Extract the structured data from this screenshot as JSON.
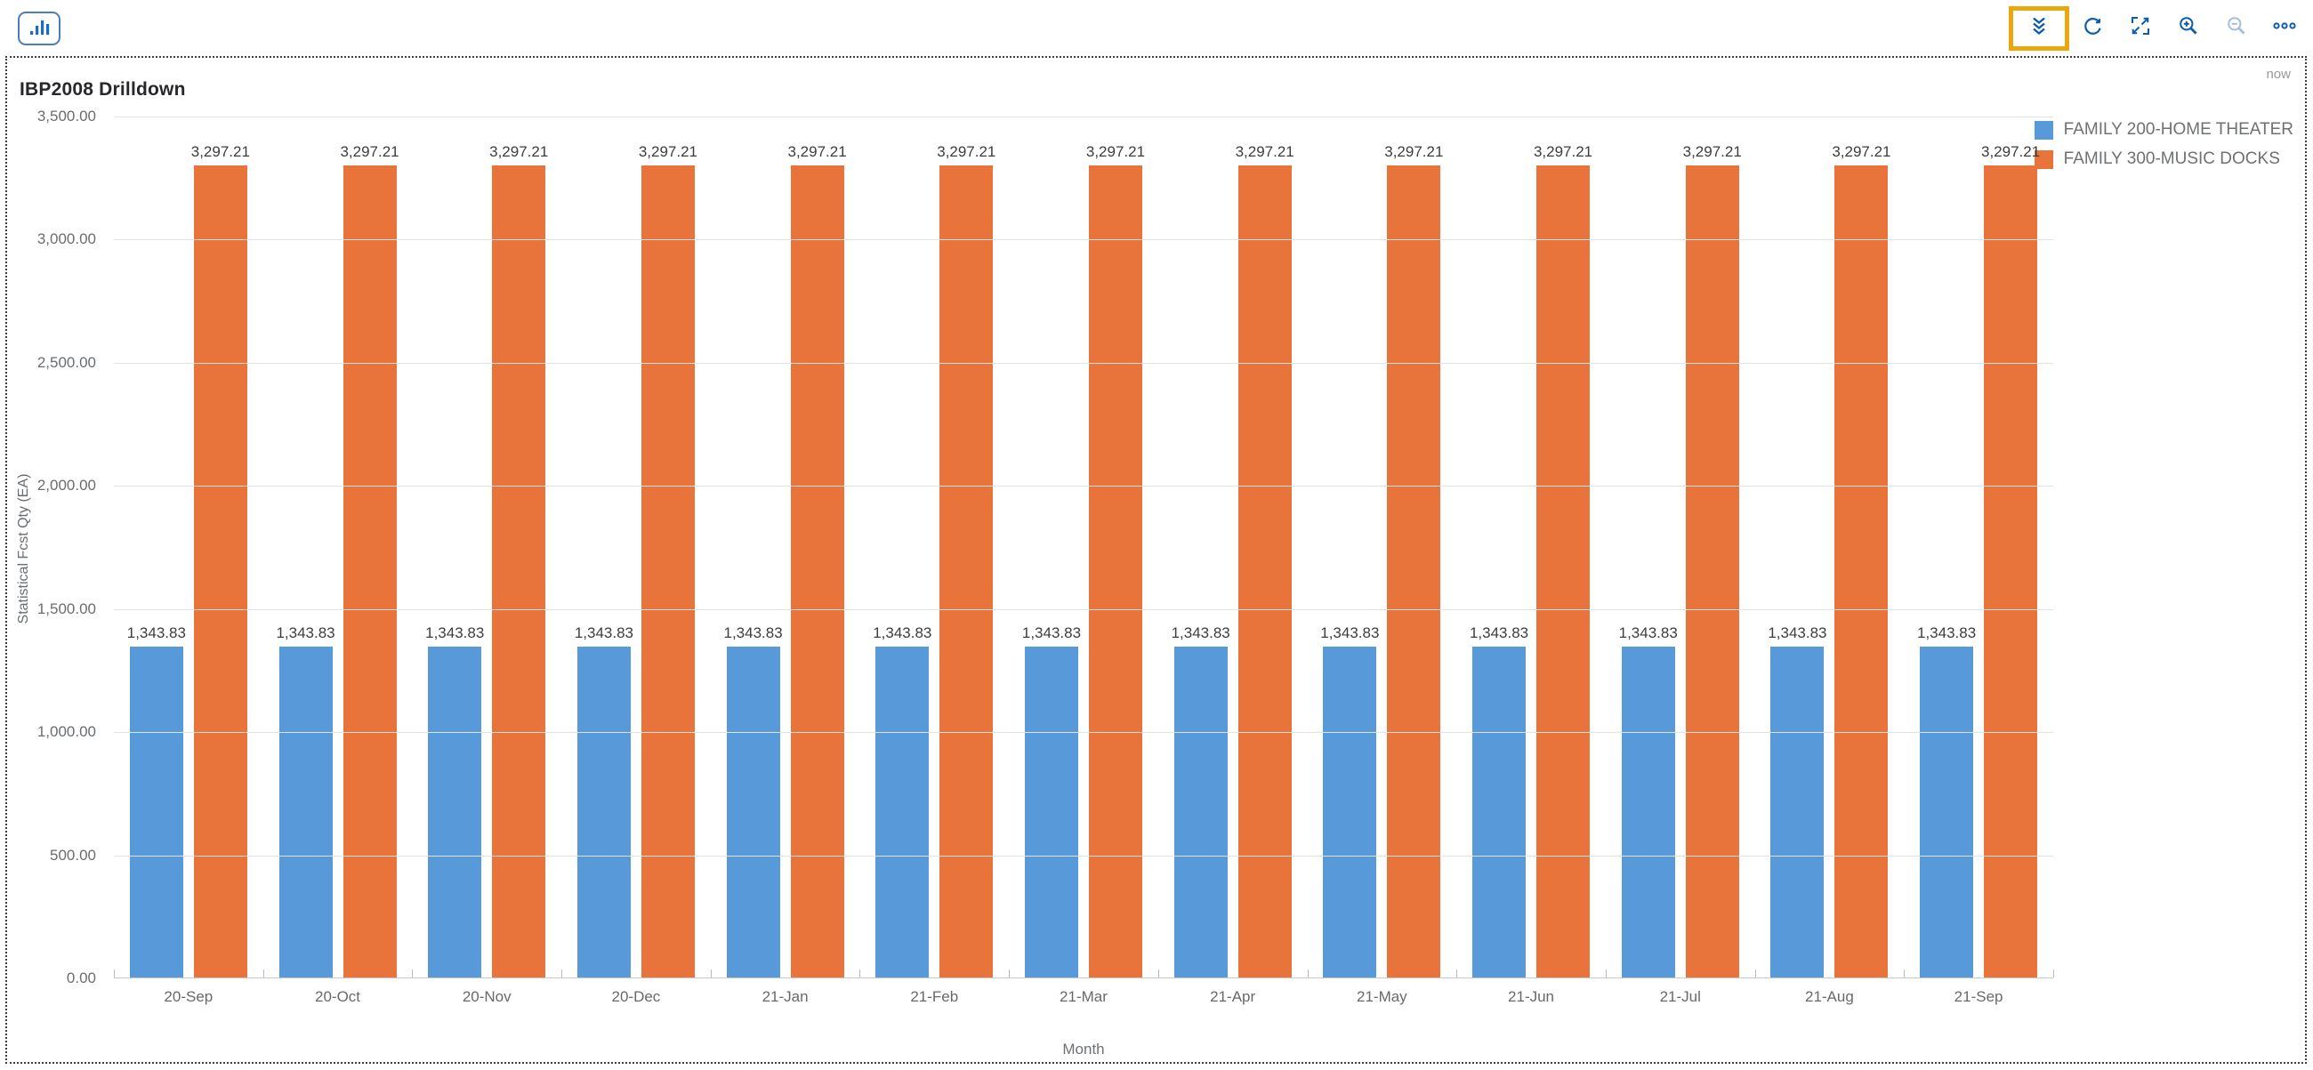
{
  "header": {
    "chart_type_button": {
      "icon": "bar-chart-icon"
    },
    "toolbar": {
      "highlight_color": "#E9A90E",
      "buttons": [
        {
          "id": "drilldown",
          "icon": "double-chevron-down-icon",
          "highlighted": true
        },
        {
          "id": "refresh",
          "icon": "refresh-icon"
        },
        {
          "id": "fit-screen",
          "icon": "fit-screen-icon"
        },
        {
          "id": "zoom-in",
          "icon": "zoom-in-icon"
        },
        {
          "id": "zoom-out",
          "icon": "zoom-out-icon",
          "disabled": true
        },
        {
          "id": "more",
          "icon": "overflow-icon"
        }
      ]
    }
  },
  "panel": {
    "title": "IBP2008 Drilldown",
    "status": "now"
  },
  "chart_data": {
    "type": "bar",
    "title": "IBP2008 Drilldown",
    "categories": [
      "20-Sep",
      "20-Oct",
      "20-Nov",
      "20-Dec",
      "21-Jan",
      "21-Feb",
      "21-Mar",
      "21-Apr",
      "21-May",
      "21-Jun",
      "21-Jul",
      "21-Aug",
      "21-Sep"
    ],
    "series": [
      {
        "name": "FAMILY 200-HOME THEATER",
        "color": "#5899DA",
        "values": [
          1343.83,
          1343.83,
          1343.83,
          1343.83,
          1343.83,
          1343.83,
          1343.83,
          1343.83,
          1343.83,
          1343.83,
          1343.83,
          1343.83,
          1343.83
        ]
      },
      {
        "name": "FAMILY 300-MUSIC DOCKS",
        "color": "#E8743B",
        "values": [
          3297.21,
          3297.21,
          3297.21,
          3297.21,
          3297.21,
          3297.21,
          3297.21,
          3297.21,
          3297.21,
          3297.21,
          3297.21,
          3297.21,
          3297.21
        ]
      }
    ],
    "xlabel": "Month",
    "ylabel": "Statistical Fcst Qty (EA)",
    "ylim": [
      0,
      3500
    ],
    "ytick_step": 500,
    "grid": true,
    "data_labels": true,
    "legend_position": "top-right"
  }
}
